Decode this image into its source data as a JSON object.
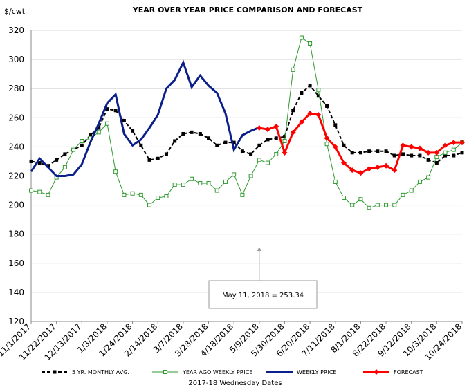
{
  "chart_data": {
    "type": "line",
    "title": "YEAR OVER YEAR PRICE COMPARISON AND FORECAST",
    "y_label": "$/cwt",
    "x_label": "2017-18 Wednesday Dates",
    "annotation": "May 11, 2018  = 253.34",
    "categories": [
      "11/1/2017",
      null,
      null,
      "11/22/2017",
      null,
      null,
      "12/13/2017",
      null,
      null,
      "1/3/2018",
      null,
      null,
      "1/24/2018",
      null,
      null,
      "2/14/2018",
      null,
      null,
      "3/7/2018",
      null,
      null,
      "3/28/2018",
      null,
      null,
      "4/18/2018",
      null,
      null,
      "5/9/2018",
      null,
      null,
      "5/30/2018",
      null,
      null,
      "6/20/2018",
      null,
      null,
      "7/11/2018",
      null,
      null,
      "8/1/2018",
      null,
      null,
      "8/22/2018",
      null,
      null,
      "9/12/2018",
      null,
      null,
      "10/3/2018",
      null,
      null,
      "10/24/2018"
    ],
    "ylim": [
      120,
      320
    ],
    "yticks": [
      120,
      140,
      160,
      180,
      200,
      220,
      240,
      260,
      280,
      300,
      320
    ],
    "grid": true,
    "legend": "bottom",
    "series": [
      {
        "name": "5 YR. MONTHLY AVG.",
        "color": "#000000",
        "marker": "square",
        "dashed": true,
        "values": [
          230,
          229,
          227,
          231,
          235,
          238,
          241,
          248,
          253,
          266,
          265,
          258,
          251,
          241,
          231,
          232,
          235,
          244,
          249,
          250,
          249,
          246,
          241,
          243,
          243,
          237,
          235,
          241,
          245,
          246,
          247,
          265,
          277,
          282,
          275,
          268,
          255,
          241,
          236,
          236,
          237,
          237,
          237,
          234,
          235,
          234,
          234,
          231,
          229,
          234,
          234,
          236
        ]
      },
      {
        "name": "YEAR AGO WEEKLY PRICE",
        "color": "#2e9a2e",
        "marker": "open-square",
        "dashed": false,
        "values": [
          210,
          209,
          207,
          219,
          226,
          238,
          244,
          246,
          250,
          256,
          223,
          207,
          208,
          207,
          200,
          205,
          206,
          214,
          214,
          218,
          215,
          215,
          210,
          216,
          221,
          207,
          220,
          231,
          229,
          235,
          244,
          293,
          315,
          311,
          279,
          242,
          216,
          205,
          200,
          204,
          198,
          200,
          200,
          200,
          207,
          210,
          216,
          219,
          233,
          236,
          238,
          243
        ]
      },
      {
        "name": "WEEKLY PRICE",
        "color": "#0b1f8a",
        "marker": "none",
        "dashed": false,
        "values": [
          223,
          232,
          226,
          220,
          220,
          221,
          228,
          243,
          256,
          270,
          276,
          249,
          241,
          245,
          253,
          262,
          280,
          286,
          298,
          281,
          289,
          282,
          277,
          263,
          238,
          248,
          251,
          253.34,
          null,
          null,
          null,
          null,
          null,
          null,
          null,
          null,
          null,
          null,
          null,
          null,
          null,
          null,
          null,
          null,
          null,
          null,
          null,
          null,
          null,
          null,
          null,
          null
        ]
      },
      {
        "name": "FORECAST",
        "color": "#ff0000",
        "marker": "diamond",
        "dashed": false,
        "values": [
          null,
          null,
          null,
          null,
          null,
          null,
          null,
          null,
          null,
          null,
          null,
          null,
          null,
          null,
          null,
          null,
          null,
          null,
          null,
          null,
          null,
          null,
          null,
          null,
          null,
          null,
          null,
          253,
          252,
          254,
          236,
          250,
          257,
          263,
          262,
          246,
          240,
          229,
          224,
          222,
          225,
          226,
          227,
          224,
          241,
          240,
          239,
          236,
          236,
          241,
          243,
          243
        ]
      }
    ]
  }
}
